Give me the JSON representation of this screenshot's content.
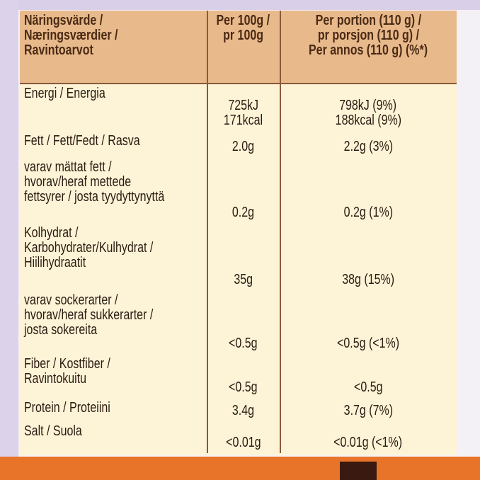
{
  "header": {
    "nutrient": [
      "Näringsvärde /",
      "Næringsværdier /",
      "Ravintoarvot"
    ],
    "per_100g": [
      "Per 100g /",
      "pr 100g"
    ],
    "per_portion": [
      "Per portion (110 g) /",
      "pr porsjon (110 g) /",
      "Per annos (110 g) (%*)"
    ]
  },
  "rows": [
    {
      "nutrient": [
        "Energi / Energia"
      ],
      "per_100g": [
        "725kJ",
        "171kcal"
      ],
      "per_portion": [
        "798kJ (9%)",
        "188kcal (9%)"
      ]
    },
    {
      "nutrient": [
        "Fett / Fett/Fedt / Rasva"
      ],
      "per_100g": [
        "2.0g"
      ],
      "per_portion": [
        "2.2g (3%)"
      ]
    },
    {
      "nutrient": [
        "varav mättat fett /",
        "hvorav/heraf mettede",
        "fettsyrer / josta tyydyttynyttä"
      ],
      "per_100g": [
        "0.2g"
      ],
      "per_portion": [
        "0.2g (1%)"
      ]
    },
    {
      "nutrient": [
        "Kolhydrat /",
        "Karbohydrater/Kulhydrat /",
        "Hiilihydraatit"
      ],
      "per_100g": [
        "35g"
      ],
      "per_portion": [
        "38g (15%)"
      ]
    },
    {
      "nutrient": [
        "varav sockerarter /",
        "hvorav/heraf sukkerarter /",
        "josta sokereita"
      ],
      "per_100g": [
        "<0.5g"
      ],
      "per_portion": [
        "<0.5g (<1%)"
      ]
    },
    {
      "nutrient": [
        "Fiber / Kostfiber /",
        "Ravintokuitu"
      ],
      "per_100g": [
        "<0.5g"
      ],
      "per_portion": [
        "<0.5g"
      ]
    },
    {
      "nutrient": [
        "Protein / Proteiini"
      ],
      "per_100g": [
        "3.4g"
      ],
      "per_portion": [
        "3.7g (7%)"
      ]
    },
    {
      "nutrient": [
        "Salt / Suola"
      ],
      "per_100g": [
        "<0.01g"
      ],
      "per_portion": [
        "<0.01g (<1%)"
      ]
    }
  ]
}
